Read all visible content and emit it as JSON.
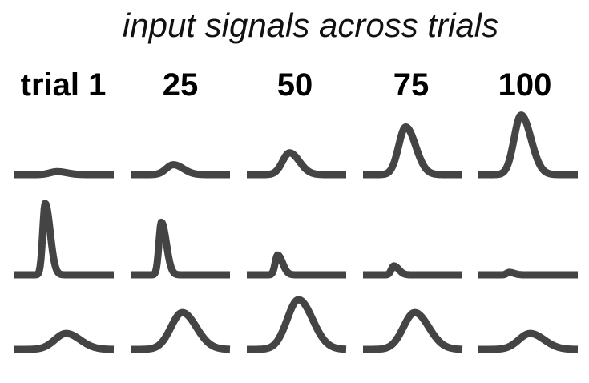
{
  "title": "input signals across trials",
  "columns": [
    "trial 1",
    "25",
    "50",
    "75",
    "100"
  ],
  "colors": {
    "trace": "#444444",
    "text": "#000000"
  },
  "chart_data": {
    "type": "line",
    "rows": 3,
    "series": [
      {
        "peaks": [
          0.06,
          0.2,
          0.44,
          0.96,
          1.2
        ]
      },
      {
        "peaks": [
          1.44,
          1.06,
          0.4,
          0.18,
          0.05
        ]
      },
      {
        "peaks": [
          0.32,
          0.74,
          1.0,
          0.74,
          0.32
        ]
      }
    ]
  }
}
